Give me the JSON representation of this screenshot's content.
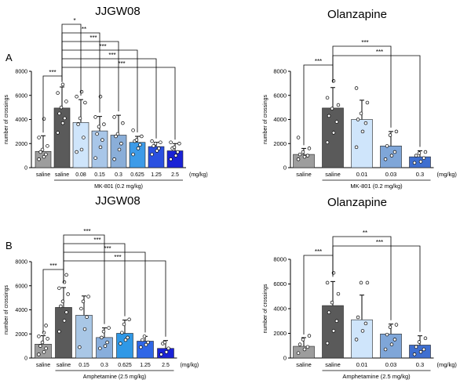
{
  "panel_labels": [
    "A",
    "B"
  ],
  "chart_data": [
    {
      "type": "bar",
      "title": "JJGW08",
      "ylabel": "number of crossings",
      "ylim": [
        0,
        8000
      ],
      "yticks": [
        0,
        2000,
        4000,
        6000,
        8000
      ],
      "categories": [
        "saline",
        "saline",
        "0.08",
        "0.15",
        "0.3",
        "0.625",
        "1.25",
        "2.5"
      ],
      "unit": "(mg/kg)",
      "group_label": "MK-801 (0.2 mg/kg)",
      "group_range": [
        1,
        7
      ],
      "values": [
        1350,
        4950,
        3750,
        3050,
        2700,
        2100,
        1750,
        1400
      ],
      "error_plus": [
        1300,
        1750,
        1900,
        1200,
        1650,
        500,
        350,
        600
      ],
      "bar_colors": [
        "#9d9d9d",
        "#5a5a5a",
        "#cfe5fb",
        "#a8c6e8",
        "#8aaed8",
        "#3d9be8",
        "#2b50e0",
        "#1a22d6"
      ],
      "points": [
        [
          700,
          900,
          1100,
          1300,
          1500,
          1800,
          2500,
          4050
        ],
        [
          2900,
          3700,
          4100,
          4500,
          5000,
          5500,
          6200,
          6900
        ],
        [
          1300,
          1500,
          2500,
          3600,
          4100,
          5400,
          5900,
          6300
        ],
        [
          800,
          1700,
          2300,
          2800,
          3400,
          3600,
          4200,
          5900
        ],
        [
          700,
          1500,
          2000,
          2600,
          2800,
          3700,
          4200
        ],
        [
          1100,
          1600,
          1900,
          2200,
          2300,
          2600,
          3100
        ],
        [
          1100,
          1400,
          1600,
          1800,
          2000,
          2100,
          2200
        ],
        [
          700,
          1000,
          1300,
          1600,
          1700,
          2000,
          2100
        ]
      ],
      "significance": [
        {
          "from": 0,
          "to": 1,
          "label": "***"
        },
        {
          "from": 1,
          "to": 2,
          "label": "*"
        },
        {
          "from": 1,
          "to": 3,
          "label": "**"
        },
        {
          "from": 1,
          "to": 4,
          "label": "***"
        },
        {
          "from": 1,
          "to": 5,
          "label": "***"
        },
        {
          "from": 1,
          "to": 6,
          "label": "***"
        },
        {
          "from": 1,
          "to": 7,
          "label": "***"
        }
      ]
    },
    {
      "type": "bar",
      "title": "Olanzapine",
      "ylabel": "number of crossings",
      "ylim": [
        0,
        8000
      ],
      "yticks": [
        0,
        2000,
        4000,
        6000,
        8000
      ],
      "categories": [
        "saline",
        "saline",
        "0.01",
        "0.03",
        "0.3"
      ],
      "unit": "(mg/kg)",
      "group_label": "MK-801 (0.2 mg/kg)",
      "group_range": [
        1,
        4
      ],
      "values": [
        1100,
        4950,
        4000,
        1800,
        900
      ],
      "error_plus": [
        500,
        1700,
        1600,
        1200,
        500
      ],
      "bar_colors": [
        "#9d9d9d",
        "#5a5a5a",
        "#cfe5fb",
        "#7fa6d8",
        "#3f6fd0"
      ],
      "points": [
        [
          700,
          900,
          1000,
          1100,
          1300,
          1600,
          2500
        ],
        [
          2100,
          2900,
          3800,
          4300,
          4900,
          5200,
          5800,
          7200
        ],
        [
          1700,
          3000,
          3700,
          4000,
          4500,
          5400,
          6600
        ],
        [
          700,
          1000,
          1300,
          1800,
          2700,
          3000
        ],
        [
          400,
          500,
          800,
          1000,
          1200,
          1300
        ]
      ],
      "significance": [
        {
          "from": 0,
          "to": 1,
          "label": "***"
        },
        {
          "from": 1,
          "to": 3,
          "label": "***"
        },
        {
          "from": 1,
          "to": 4,
          "label": "***"
        }
      ]
    },
    {
      "type": "bar",
      "title": "JJGW08",
      "ylabel": "number of crossings",
      "ylim": [
        0,
        8000
      ],
      "yticks": [
        0,
        2000,
        4000,
        6000,
        8000
      ],
      "categories": [
        "saline",
        "saline",
        "0.15",
        "0.3",
        "0.625",
        "1.25",
        "2.5"
      ],
      "unit": "(mg/kg)",
      "group_label": "Amphetamine (2.5 mg/kg)",
      "group_range": [
        1,
        6
      ],
      "values": [
        1150,
        4200,
        3550,
        1700,
        2050,
        1400,
        800
      ],
      "error_plus": [
        700,
        1650,
        1600,
        800,
        1100,
        400,
        650
      ],
      "bar_colors": [
        "#9d9d9d",
        "#5a5a5a",
        "#a9c7e6",
        "#88aedc",
        "#2f98e6",
        "#2f66e6",
        "#1a22d6"
      ],
      "points": [
        [
          300,
          500,
          800,
          1000,
          1300,
          1600,
          1800,
          2100,
          2700
        ],
        [
          2200,
          3100,
          3800,
          4300,
          4700,
          5300,
          5800,
          6300,
          6900
        ],
        [
          900,
          2400,
          3400,
          4100,
          4700,
          5100
        ],
        [
          800,
          1000,
          1300,
          1700,
          2200,
          2500
        ],
        [
          1200,
          1500,
          1700,
          2100,
          2800,
          3200
        ],
        [
          900,
          1100,
          1300,
          1500,
          1800
        ],
        [
          300,
          500,
          800,
          1200,
          1300
        ]
      ],
      "significance": [
        {
          "from": 0,
          "to": 1,
          "label": "***"
        },
        {
          "from": 1,
          "to": 3,
          "label": "***"
        },
        {
          "from": 1,
          "to": 4,
          "label": "***"
        },
        {
          "from": 1,
          "to": 5,
          "label": "***"
        },
        {
          "from": 1,
          "to": 6,
          "label": "***"
        }
      ]
    },
    {
      "type": "bar",
      "title": "Olanzapine",
      "ylabel": "number of crossings",
      "ylim": [
        0,
        8000
      ],
      "yticks": [
        0,
        2000,
        4000,
        6000,
        8000
      ],
      "categories": [
        "saline",
        "saline",
        "0.01",
        "0.03",
        "0.3"
      ],
      "unit": "(mg/kg)",
      "group_label": "Amphetamine (2.5 mg/kg)",
      "group_range": [
        1,
        4
      ],
      "values": [
        950,
        4250,
        3100,
        1950,
        1050
      ],
      "error_plus": [
        700,
        1950,
        2000,
        800,
        750
      ],
      "bar_colors": [
        "#9d9d9d",
        "#5a5a5a",
        "#cfe5fb",
        "#7fa6d8",
        "#3f6fd0"
      ],
      "points": [
        [
          400,
          700,
          900,
          1100,
          1500,
          1800
        ],
        [
          1200,
          2200,
          3000,
          3700,
          4500,
          5200,
          6100,
          6900
        ],
        [
          1500,
          2200,
          2800,
          3300,
          6100,
          6100
        ],
        [
          700,
          1100,
          1500,
          1900,
          2500,
          2700
        ],
        [
          300,
          500,
          700,
          900,
          1300,
          1600
        ]
      ],
      "significance": [
        {
          "from": 0,
          "to": 1,
          "label": "***"
        },
        {
          "from": 1,
          "to": 3,
          "label": "**"
        },
        {
          "from": 1,
          "to": 4,
          "label": "***"
        }
      ]
    }
  ]
}
